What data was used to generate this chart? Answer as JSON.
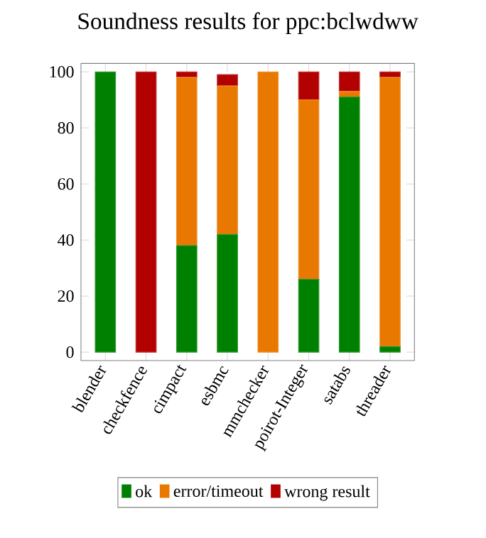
{
  "chart_data": {
    "type": "bar",
    "stacked": true,
    "title": "Soundness results for ppc:bclwdww",
    "categories": [
      "blender",
      "checkfence",
      "cimpact",
      "esbmc",
      "mmchecker",
      "poirot-Integer",
      "satabs",
      "threader"
    ],
    "series": [
      {
        "name": "ok",
        "color": "#008000",
        "values": [
          100,
          0,
          38,
          42,
          0,
          26,
          91,
          2
        ]
      },
      {
        "name": "error/timeout",
        "color": "#e87800",
        "values": [
          0,
          0,
          60,
          53,
          100,
          64,
          2,
          96
        ]
      },
      {
        "name": "wrong result",
        "color": "#b30000",
        "values": [
          0,
          100,
          2,
          4,
          0,
          10,
          7,
          2
        ]
      }
    ],
    "ylim": [
      -3,
      103
    ],
    "yticks": [
      0,
      20,
      40,
      60,
      80,
      100
    ],
    "legend": "bottom"
  }
}
